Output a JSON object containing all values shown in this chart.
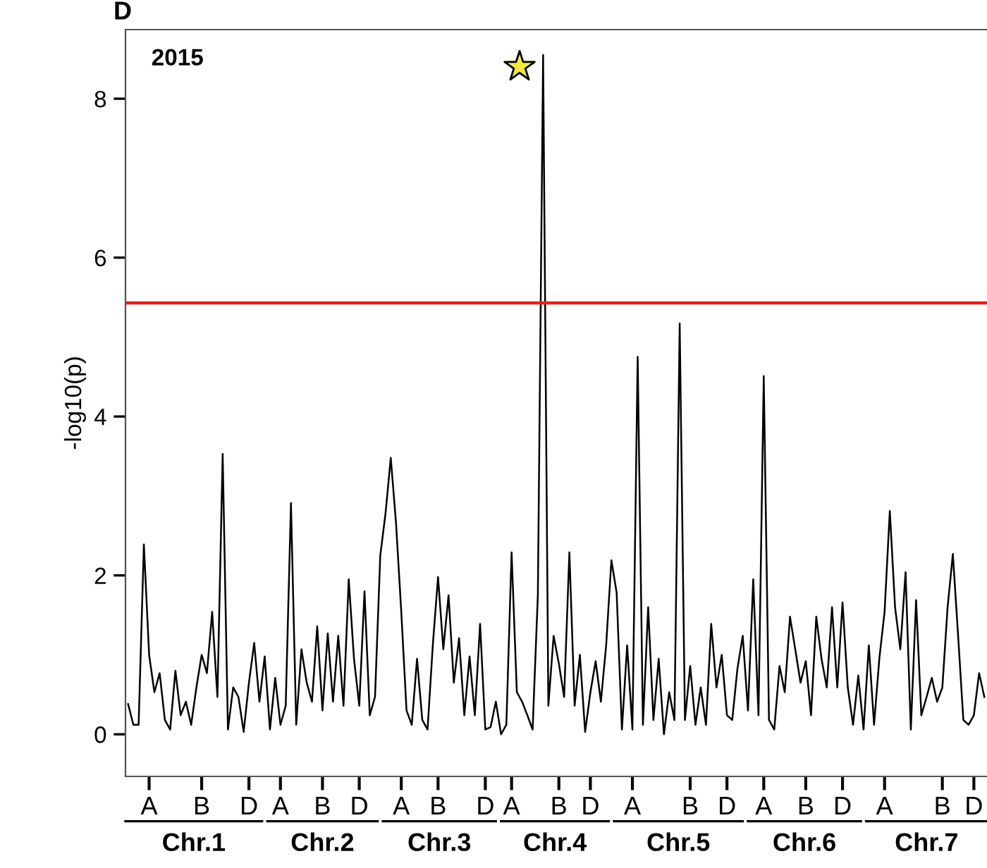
{
  "chart_data": {
    "type": "line",
    "title": "2015",
    "ylabel": "-log10(p)",
    "annotations": [
      "D",
      "Chr.1",
      "Chr.2",
      "Chr.3",
      "Chr.4",
      "Chr.5",
      "Chr.6",
      "Chr.7"
    ],
    "categories": [
      null,
      null,
      null,
      null,
      "A",
      null,
      null,
      null,
      null,
      null,
      null,
      null,
      null,
      null,
      "B",
      null,
      null,
      null,
      null,
      null,
      null,
      null,
      null,
      "D",
      null,
      null,
      null,
      null,
      null,
      "A",
      null,
      null,
      null,
      null,
      null,
      null,
      null,
      "B",
      null,
      null,
      null,
      null,
      null,
      null,
      "D",
      null,
      null,
      null,
      null,
      null,
      null,
      null,
      "A",
      null,
      null,
      null,
      null,
      null,
      null,
      "B",
      null,
      null,
      null,
      null,
      null,
      null,
      null,
      null,
      "D",
      null,
      null,
      null,
      null,
      "A",
      null,
      null,
      null,
      null,
      null,
      null,
      null,
      null,
      "B",
      null,
      null,
      null,
      null,
      null,
      "D",
      null,
      null,
      null,
      null,
      null,
      null,
      null,
      "A",
      null,
      null,
      null,
      null,
      null,
      null,
      null,
      null,
      null,
      null,
      "B",
      null,
      null,
      null,
      null,
      null,
      null,
      "D",
      null,
      null,
      null,
      null,
      null,
      null,
      "A",
      null,
      null,
      null,
      null,
      null,
      null,
      null,
      "B",
      null,
      null,
      null,
      null,
      null,
      null,
      "D",
      null,
      null,
      null,
      null,
      null,
      null,
      null,
      "A",
      null,
      null,
      null,
      null,
      null,
      null,
      null,
      null,
      null,
      null,
      "B",
      null,
      null,
      null,
      null,
      null,
      "D",
      null,
      null
    ],
    "series": [
      {
        "color": "#000000",
        "values": [
          0.38,
          0.12,
          0.12,
          2.39,
          1.0,
          0.53,
          0.77,
          0.18,
          0.06,
          0.8,
          0.24,
          0.41,
          0.12,
          0.59,
          1.0,
          0.77,
          1.54,
          0.47,
          3.53,
          0.06,
          0.59,
          0.47,
          0.03,
          0.65,
          1.15,
          0.41,
          0.98,
          0.06,
          0.71,
          0.12,
          0.36,
          2.91,
          0.12,
          1.07,
          0.65,
          0.41,
          1.36,
          0.3,
          1.27,
          0.41,
          1.24,
          0.36,
          1.95,
          0.95,
          0.36,
          1.8,
          0.24,
          0.47,
          2.25,
          2.78,
          3.48,
          2.66,
          1.54,
          0.3,
          0.12,
          0.95,
          0.18,
          0.06,
          1.12,
          1.98,
          1.07,
          1.75,
          0.65,
          1.21,
          0.24,
          0.98,
          0.24,
          1.39,
          0.06,
          0.09,
          0.41,
          0.0,
          0.12,
          2.29,
          0.53,
          0.41,
          0.24,
          0.06,
          1.75,
          8.55,
          0.36,
          1.24,
          0.89,
          0.47,
          2.29,
          0.36,
          1.0,
          0.03,
          0.53,
          0.92,
          0.41,
          1.12,
          2.19,
          1.78,
          0.06,
          1.12,
          0.06,
          4.75,
          0.12,
          1.6,
          0.18,
          0.95,
          0.0,
          0.53,
          0.18,
          5.17,
          0.18,
          0.86,
          0.12,
          0.59,
          0.12,
          1.39,
          0.59,
          1.0,
          0.24,
          0.18,
          0.83,
          1.24,
          0.3,
          1.95,
          0.24,
          4.51,
          0.18,
          0.06,
          0.86,
          0.53,
          1.48,
          1.07,
          0.65,
          0.92,
          0.24,
          1.48,
          0.95,
          0.59,
          1.6,
          0.59,
          1.66,
          0.59,
          0.12,
          0.74,
          0.06,
          1.12,
          0.12,
          0.95,
          1.54,
          2.81,
          1.6,
          1.07,
          2.04,
          0.06,
          1.69,
          0.24,
          0.47,
          0.71,
          0.41,
          0.59,
          1.6,
          2.27,
          1.24,
          0.18,
          0.12,
          0.24,
          0.77,
          0.47
        ]
      }
    ],
    "ylim": [
      -0.53,
      8.87
    ],
    "yticks": [
      0,
      2,
      4,
      6,
      8
    ],
    "ref_lines": [
      {
        "axis": "y",
        "value": 5.43,
        "color": "#e3211c"
      }
    ],
    "grid": false,
    "legend": false,
    "marker": "none",
    "line_style": "solid"
  }
}
